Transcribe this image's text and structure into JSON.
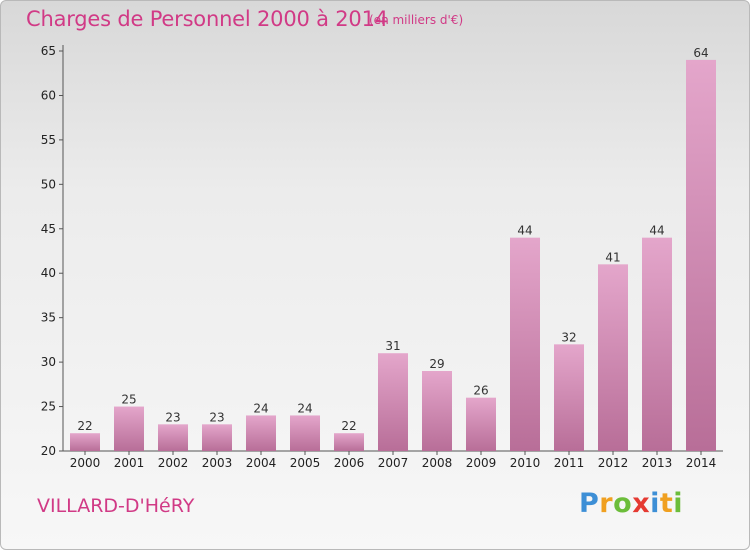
{
  "page": {
    "title": "Charges de Personnel 2000 à 2014",
    "subtitle": "(en milliers d'€)",
    "commune": "VILLARD-D'HéRY",
    "logo_letters": [
      {
        "ch": "P",
        "color": "#3d8fd6"
      },
      {
        "ch": "r",
        "color": "#f0a020"
      },
      {
        "ch": "o",
        "color": "#6cbd3a"
      },
      {
        "ch": "x",
        "color": "#e53a32"
      },
      {
        "ch": "i",
        "color": "#3d8fd6"
      },
      {
        "ch": "t",
        "color": "#f0a020"
      },
      {
        "ch": "i",
        "color": "#6cbd3a"
      }
    ]
  },
  "chart_data": {
    "type": "bar",
    "title": "Charges de Personnel 2000 à 2014",
    "subtitle": "(en milliers d'€)",
    "categories": [
      "2000",
      "2001",
      "2002",
      "2003",
      "2004",
      "2005",
      "2006",
      "2007",
      "2008",
      "2009",
      "2010",
      "2011",
      "2012",
      "2013",
      "2014"
    ],
    "values": [
      22,
      25,
      23,
      23,
      24,
      24,
      22,
      31,
      29,
      26,
      44,
      32,
      41,
      44,
      64
    ],
    "ylim": [
      20,
      65
    ],
    "yticks": [
      20,
      25,
      30,
      35,
      40,
      45,
      50,
      55,
      60,
      65
    ],
    "grid": false,
    "bar_color_top": "#e4a6cb",
    "bar_color_bottom": "#b86e98"
  }
}
